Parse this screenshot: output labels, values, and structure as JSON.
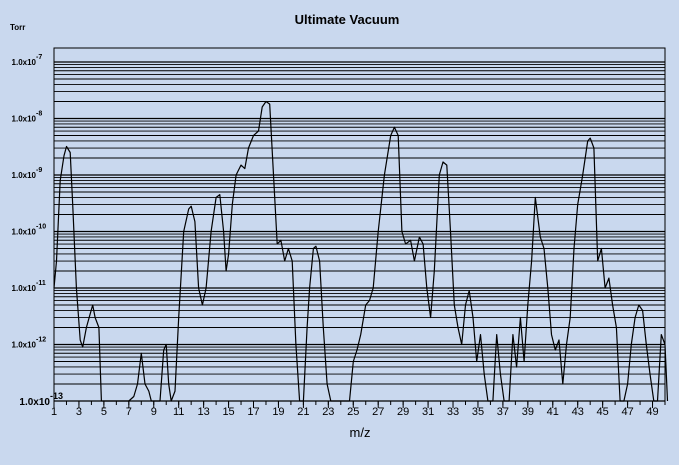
{
  "chart_data": {
    "type": "line",
    "title": "Ultimate Vacuum",
    "xlabel": "m/z",
    "ylabel": "Torr",
    "y_scale": "log",
    "xlim": [
      1,
      50
    ],
    "ylim": [
      1e-13,
      1e-07
    ],
    "grid": true,
    "x_ticks": [
      1,
      3,
      5,
      7,
      9,
      11,
      13,
      15,
      17,
      19,
      21,
      23,
      25,
      27,
      29,
      31,
      33,
      35,
      37,
      39,
      41,
      43,
      45,
      47,
      49
    ],
    "y_ticks": [
      {
        "mantissa": "1.0x10",
        "exponent": "-13",
        "value": 1e-13
      },
      {
        "mantissa": "1.0x10",
        "exponent": "-12",
        "value": 1e-12
      },
      {
        "mantissa": "1.0x10",
        "exponent": "-11",
        "value": 1e-11
      },
      {
        "mantissa": "1.0x10",
        "exponent": "-10",
        "value": 1e-10
      },
      {
        "mantissa": "1.0x10",
        "exponent": "-9",
        "value": 1e-09
      },
      {
        "mantissa": "1.0x10",
        "exponent": "-8",
        "value": 1e-08
      },
      {
        "mantissa": "1.0x10",
        "exponent": "-7",
        "value": 1e-07
      }
    ],
    "series": [
      {
        "points": [
          [
            1.0,
            1e-11
          ],
          [
            1.2,
            3e-11
          ],
          [
            1.5,
            8e-10
          ],
          [
            1.8,
            2.2e-09
          ],
          [
            2.0,
            3.2e-09
          ],
          [
            2.3,
            2.5e-09
          ],
          [
            2.5,
            3e-10
          ],
          [
            2.8,
            1e-11
          ],
          [
            3.1,
            1.2e-12
          ],
          [
            3.3,
            9e-13
          ],
          [
            3.6,
            2e-12
          ],
          [
            3.9,
            3.5e-12
          ],
          [
            4.1,
            5e-12
          ],
          [
            4.3,
            3e-12
          ],
          [
            4.6,
            2e-12
          ],
          [
            4.8,
            1e-13
          ],
          [
            7.0,
            1e-13
          ],
          [
            7.4,
            1.2e-13
          ],
          [
            7.7,
            2e-13
          ],
          [
            8.0,
            7e-13
          ],
          [
            8.3,
            2e-13
          ],
          [
            8.6,
            1.5e-13
          ],
          [
            8.8,
            1e-13
          ],
          [
            9.5,
            1e-13
          ],
          [
            9.8,
            8e-13
          ],
          [
            10.0,
            1e-12
          ],
          [
            10.2,
            2e-13
          ],
          [
            10.4,
            1e-13
          ],
          [
            10.7,
            1.5e-13
          ],
          [
            11.0,
            3e-12
          ],
          [
            11.4,
            1e-10
          ],
          [
            11.8,
            2.5e-10
          ],
          [
            12.0,
            2.8e-10
          ],
          [
            12.3,
            1.5e-10
          ],
          [
            12.6,
            1e-11
          ],
          [
            12.9,
            5e-12
          ],
          [
            13.2,
            1e-11
          ],
          [
            13.6,
            1e-10
          ],
          [
            14.0,
            4e-10
          ],
          [
            14.3,
            4.5e-10
          ],
          [
            14.6,
            1e-10
          ],
          [
            14.8,
            2e-11
          ],
          [
            15.0,
            4e-11
          ],
          [
            15.3,
            3e-10
          ],
          [
            15.6,
            1e-09
          ],
          [
            16.0,
            1.5e-09
          ],
          [
            16.3,
            1.3e-09
          ],
          [
            16.6,
            3e-09
          ],
          [
            17.0,
            5e-09
          ],
          [
            17.4,
            6e-09
          ],
          [
            17.7,
            1.6e-08
          ],
          [
            18.0,
            2e-08
          ],
          [
            18.3,
            1.8e-08
          ],
          [
            18.6,
            1e-09
          ],
          [
            18.9,
            6e-11
          ],
          [
            19.2,
            7e-11
          ],
          [
            19.5,
            3e-11
          ],
          [
            19.8,
            5e-11
          ],
          [
            20.1,
            3e-11
          ],
          [
            20.4,
            1e-12
          ],
          [
            20.7,
            1e-13
          ],
          [
            21.0,
            1e-13
          ],
          [
            21.3,
            2e-12
          ],
          [
            21.5,
            1e-11
          ],
          [
            21.8,
            5e-11
          ],
          [
            22.0,
            5.5e-11
          ],
          [
            22.3,
            3e-11
          ],
          [
            22.6,
            2e-12
          ],
          [
            22.9,
            2e-13
          ],
          [
            23.2,
            1e-13
          ],
          [
            24.7,
            1e-13
          ],
          [
            25.0,
            5e-13
          ],
          [
            25.3,
            8e-13
          ],
          [
            25.6,
            1.5e-12
          ],
          [
            26.0,
            5e-12
          ],
          [
            26.3,
            6e-12
          ],
          [
            26.6,
            1e-11
          ],
          [
            27.0,
            1e-10
          ],
          [
            27.5,
            1e-09
          ],
          [
            28.0,
            5e-09
          ],
          [
            28.3,
            7e-09
          ],
          [
            28.6,
            5e-09
          ],
          [
            28.9,
            1e-10
          ],
          [
            29.2,
            6e-11
          ],
          [
            29.6,
            7e-11
          ],
          [
            29.9,
            3e-11
          ],
          [
            30.3,
            8e-11
          ],
          [
            30.6,
            6e-11
          ],
          [
            30.9,
            1e-11
          ],
          [
            31.2,
            3e-12
          ],
          [
            31.5,
            2e-11
          ],
          [
            31.9,
            1e-09
          ],
          [
            32.2,
            1.7e-09
          ],
          [
            32.5,
            1.5e-09
          ],
          [
            32.8,
            1e-10
          ],
          [
            33.1,
            5e-12
          ],
          [
            33.4,
            2e-12
          ],
          [
            33.7,
            1e-12
          ],
          [
            34.0,
            5e-12
          ],
          [
            34.3,
            9e-12
          ],
          [
            34.6,
            3e-12
          ],
          [
            34.9,
            5e-13
          ],
          [
            35.2,
            1.5e-12
          ],
          [
            35.5,
            3e-13
          ],
          [
            35.8,
            1e-13
          ],
          [
            36.2,
            1e-13
          ],
          [
            36.5,
            1.5e-12
          ],
          [
            36.8,
            3e-13
          ],
          [
            37.1,
            1e-13
          ],
          [
            37.5,
            1e-13
          ],
          [
            37.8,
            1.5e-12
          ],
          [
            38.1,
            4e-13
          ],
          [
            38.4,
            3e-12
          ],
          [
            38.7,
            5e-13
          ],
          [
            39.0,
            5e-12
          ],
          [
            39.3,
            3e-11
          ],
          [
            39.6,
            4e-10
          ],
          [
            40.0,
            8e-11
          ],
          [
            40.3,
            5e-11
          ],
          [
            40.6,
            1e-11
          ],
          [
            40.9,
            1.5e-12
          ],
          [
            41.2,
            8e-13
          ],
          [
            41.5,
            1.2e-12
          ],
          [
            41.8,
            2e-13
          ],
          [
            42.1,
            1e-12
          ],
          [
            42.4,
            3e-12
          ],
          [
            42.7,
            5e-11
          ],
          [
            43.0,
            3e-10
          ],
          [
            43.4,
            1e-09
          ],
          [
            43.8,
            4e-09
          ],
          [
            44.0,
            4.5e-09
          ],
          [
            44.3,
            3e-09
          ],
          [
            44.6,
            3e-11
          ],
          [
            44.9,
            5e-11
          ],
          [
            45.2,
            1e-11
          ],
          [
            45.5,
            1.5e-11
          ],
          [
            45.8,
            5e-12
          ],
          [
            46.1,
            2e-12
          ],
          [
            46.4,
            1e-13
          ],
          [
            46.7,
            1e-13
          ],
          [
            47.0,
            2e-13
          ],
          [
            47.3,
            1e-12
          ],
          [
            47.6,
            3e-12
          ],
          [
            47.9,
            5e-12
          ],
          [
            48.2,
            4e-12
          ],
          [
            48.5,
            1e-12
          ],
          [
            48.8,
            3e-13
          ],
          [
            49.1,
            1e-13
          ],
          [
            49.4,
            1e-13
          ],
          [
            49.7,
            1.5e-12
          ],
          [
            50.0,
            1e-12
          ],
          [
            50.2,
            1e-13
          ]
        ]
      }
    ]
  }
}
